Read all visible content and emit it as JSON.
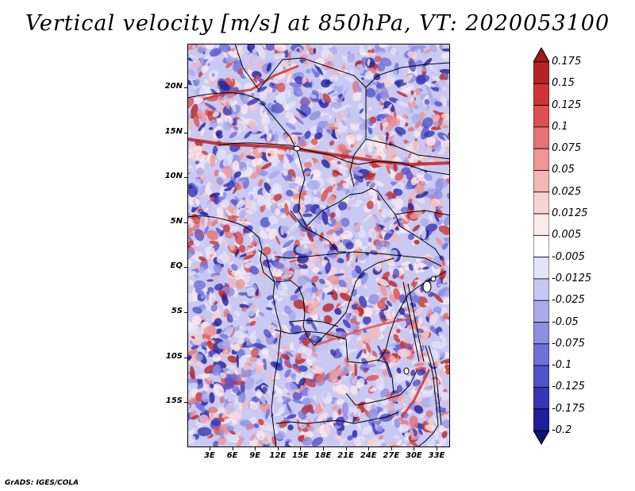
{
  "title": "Vertical velocity [m/s] at 850hPa, VT: 2020053100",
  "footer": "GrADS: IGES/COLA",
  "lat_labels": [
    "20N",
    "15N",
    "10N",
    "5N",
    "EQ",
    "5S",
    "10S",
    "15S"
  ],
  "lon_labels": [
    "3E",
    "6E",
    "9E",
    "12E",
    "15E",
    "18E",
    "21E",
    "24E",
    "27E",
    "30E",
    "33E"
  ],
  "colorbar": {
    "labels": [
      "0.175",
      "0.15",
      "0.125",
      "0.1",
      "0.075",
      "0.05",
      "0.025",
      "0.0125",
      "0.005",
      "-0.005",
      "-0.0125",
      "-0.025",
      "-0.05",
      "-0.075",
      "-0.1",
      "-0.125",
      "-0.175",
      "-0.2"
    ],
    "colors": [
      "#a0191b",
      "#b82424",
      "#cd3535",
      "#dc5050",
      "#e57373",
      "#ee9595",
      "#f4b6b6",
      "#f9d3d3",
      "#fdeaea",
      "#ffffff",
      "#e3e3fa",
      "#c7c7f3",
      "#aaaaeb",
      "#8e8ee3",
      "#7070d8",
      "#5252c8",
      "#3636b4",
      "#20209a",
      "#13137a"
    ]
  }
}
